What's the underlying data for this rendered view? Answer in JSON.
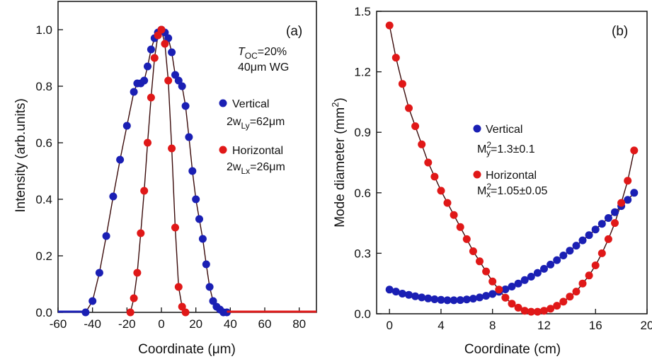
{
  "chart_data": [
    {
      "type": "scatter",
      "panel_label": "(a)",
      "xlabel": "Coordinate (μm)",
      "ylabel": "Intensity (arb.units)",
      "xlim": [
        -60,
        90
      ],
      "ylim": [
        0,
        1.1
      ],
      "xticks": [
        "-60",
        "-40",
        "-20",
        "0",
        "20",
        "40",
        "60",
        "80"
      ],
      "yticks": [
        "0.0",
        "0.2",
        "0.4",
        "0.6",
        "0.8",
        "1.0"
      ],
      "annotations": {
        "toc_T": "T",
        "toc_sub": "OC",
        "toc_rest": "=20%",
        "wg": "40μm WG"
      },
      "series": [
        {
          "name": "Vertical",
          "label_main": "2w",
          "label_sub": "Ly",
          "label_rest": "=62μm",
          "color": "#1a1fb4",
          "x": [
            -44,
            -40,
            -36,
            -32,
            -28,
            -24,
            -20,
            -16,
            -14,
            -12,
            -10,
            -8,
            -6,
            -4,
            -2,
            0,
            2,
            4,
            6,
            8,
            10,
            12,
            14,
            16,
            18,
            20,
            22,
            24,
            26,
            28,
            30,
            32,
            34,
            36,
            38
          ],
          "y": [
            0.0,
            0.04,
            0.14,
            0.27,
            0.41,
            0.54,
            0.66,
            0.78,
            0.81,
            0.81,
            0.82,
            0.87,
            0.93,
            0.97,
            0.99,
            1.0,
            0.99,
            0.97,
            0.92,
            0.84,
            0.82,
            0.8,
            0.73,
            0.62,
            0.5,
            0.4,
            0.33,
            0.26,
            0.17,
            0.09,
            0.04,
            0.02,
            0.01,
            0.0,
            0.0
          ]
        },
        {
          "name": "Horizontal",
          "label_main": "2w",
          "label_sub": "Lx",
          "label_rest": "=26μm",
          "color": "#e01818",
          "x": [
            -18,
            -16,
            -14,
            -12,
            -10,
            -8,
            -6,
            -4,
            -2,
            0,
            2,
            4,
            6,
            8,
            10,
            12,
            14
          ],
          "y": [
            0.0,
            0.05,
            0.14,
            0.28,
            0.43,
            0.6,
            0.76,
            0.9,
            0.98,
            1.0,
            0.95,
            0.82,
            0.58,
            0.3,
            0.09,
            0.02,
            0.0
          ]
        }
      ]
    },
    {
      "type": "scatter",
      "panel_label": "(b)",
      "xlabel": "Coordinate (cm)",
      "ylabel_main": "Mode diameter (mm",
      "ylabel_sup": "2",
      "ylabel_end": ")",
      "xlim": [
        -1,
        20
      ],
      "ylim": [
        0,
        1.5
      ],
      "xticks": [
        "0",
        "4",
        "8",
        "12",
        "16",
        "20"
      ],
      "yticks": [
        "0.0",
        "0.3",
        "0.6",
        "0.9",
        "1.2",
        "1.5"
      ],
      "series": [
        {
          "name": "Vertical",
          "m2_main": "M",
          "m2_sup": "2",
          "m2_sub": "y",
          "m2_rest": "=1.3±0.1",
          "color": "#1a1fb4",
          "x": [
            0,
            0.5,
            1,
            1.5,
            2,
            2.5,
            3,
            3.5,
            4,
            4.5,
            5,
            5.5,
            6,
            6.5,
            7,
            7.5,
            8,
            8.5,
            9,
            9.5,
            10,
            10.5,
            11,
            11.5,
            12,
            12.5,
            13,
            13.5,
            14,
            14.5,
            15,
            15.5,
            16,
            16.5,
            17,
            17.5,
            18,
            18.5,
            19
          ],
          "y": [
            0.12,
            0.11,
            0.1,
            0.094,
            0.087,
            0.081,
            0.076,
            0.072,
            0.069,
            0.067,
            0.067,
            0.068,
            0.071,
            0.075,
            0.081,
            0.089,
            0.098,
            0.109,
            0.121,
            0.135,
            0.15,
            0.167,
            0.184,
            0.203,
            0.223,
            0.244,
            0.266,
            0.289,
            0.313,
            0.338,
            0.364,
            0.39,
            0.418,
            0.446,
            0.475,
            0.504,
            0.534,
            0.565,
            0.6
          ]
        },
        {
          "name": "Horizontal",
          "m2_main": "M",
          "m2_sup": "2",
          "m2_sub": "x",
          "m2_rest": "=1.05±0.05",
          "color": "#e01818",
          "x": [
            0,
            0.5,
            1,
            1.5,
            2,
            2.5,
            3,
            3.5,
            4,
            4.5,
            5,
            5.5,
            6,
            6.5,
            7,
            7.5,
            8,
            8.5,
            9,
            9.5,
            10,
            10.5,
            11,
            11.5,
            12,
            12.5,
            13,
            13.5,
            14,
            14.5,
            15,
            15.5,
            16,
            16.5,
            17,
            17.5,
            18,
            18.5,
            19
          ],
          "y": [
            1.43,
            1.27,
            1.14,
            1.02,
            0.93,
            0.84,
            0.75,
            0.68,
            0.61,
            0.55,
            0.49,
            0.43,
            0.37,
            0.31,
            0.26,
            0.21,
            0.16,
            0.12,
            0.08,
            0.05,
            0.03,
            0.015,
            0.01,
            0.01,
            0.015,
            0.025,
            0.04,
            0.06,
            0.085,
            0.11,
            0.15,
            0.19,
            0.24,
            0.3,
            0.37,
            0.45,
            0.55,
            0.66,
            0.81
          ]
        }
      ]
    }
  ]
}
